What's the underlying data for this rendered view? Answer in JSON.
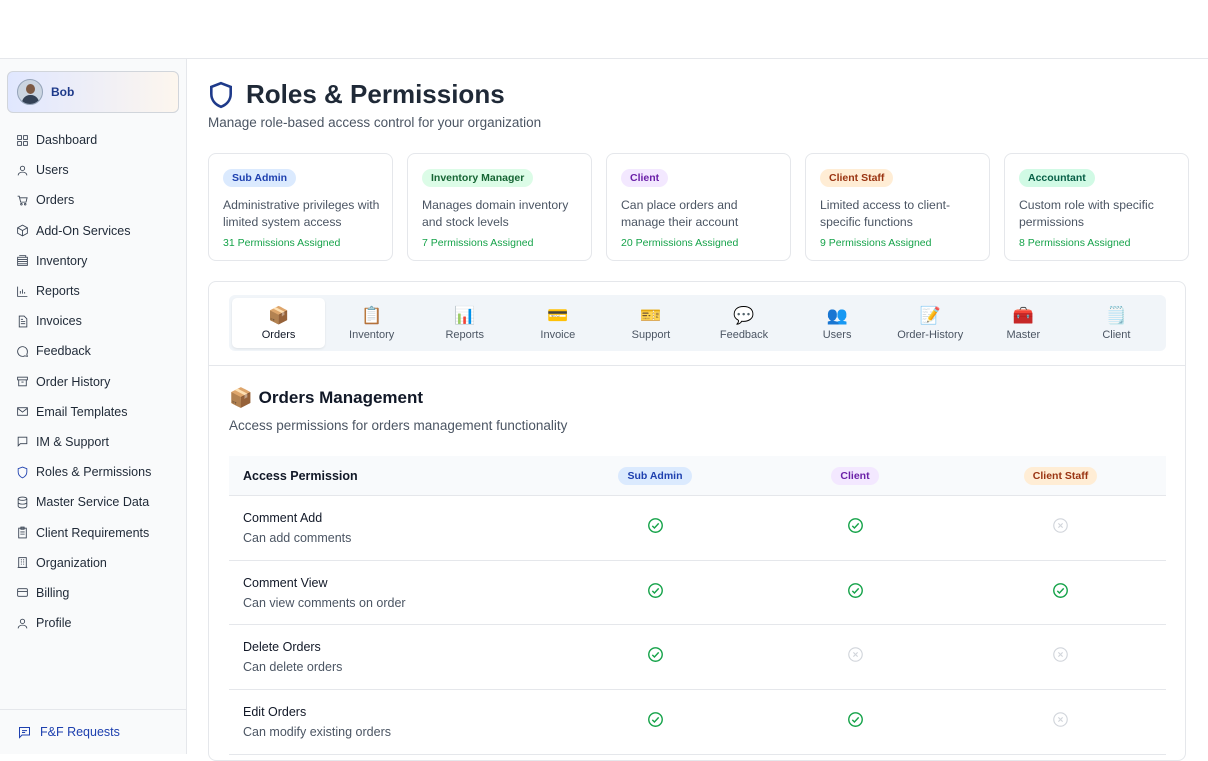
{
  "user": {
    "name": "Bob"
  },
  "sidebar": {
    "items": [
      {
        "label": "Dashboard",
        "icon": "dashboard-icon"
      },
      {
        "label": "Users",
        "icon": "user-icon"
      },
      {
        "label": "Orders",
        "icon": "cart-icon"
      },
      {
        "label": "Add-On Services",
        "icon": "package-icon"
      },
      {
        "label": "Inventory",
        "icon": "inventory-icon"
      },
      {
        "label": "Reports",
        "icon": "chart-icon"
      },
      {
        "label": "Invoices",
        "icon": "document-icon"
      },
      {
        "label": "Feedback",
        "icon": "chat-icon"
      },
      {
        "label": "Order History",
        "icon": "archive-icon"
      },
      {
        "label": "Email Templates",
        "icon": "mail-icon"
      },
      {
        "label": "IM & Support",
        "icon": "message-icon"
      },
      {
        "label": "Roles & Permissions",
        "icon": "shield-icon",
        "active": true
      },
      {
        "label": "Master Service Data",
        "icon": "database-icon"
      },
      {
        "label": "Client Requirements",
        "icon": "clipboard-icon"
      },
      {
        "label": "Organization",
        "icon": "building-icon"
      },
      {
        "label": "Billing",
        "icon": "credit-card-icon"
      },
      {
        "label": "Profile",
        "icon": "user-icon"
      }
    ],
    "footer_label": "F&F Requests"
  },
  "header": {
    "title": "Roles & Permissions",
    "subtitle": "Manage role-based access control for your organization"
  },
  "roles": [
    {
      "name": "Sub Admin",
      "description": "Administrative privileges with limited system access",
      "count": "31 Permissions Assigned",
      "badge_bg": "#dbeafe",
      "badge_fg": "#1e40af"
    },
    {
      "name": "Inventory Manager",
      "description": "Manages domain inventory and stock levels",
      "count": "7 Permissions Assigned",
      "badge_bg": "#dcfce7",
      "badge_fg": "#166534"
    },
    {
      "name": "Client",
      "description": "Can place orders and manage their account",
      "count": "20 Permissions Assigned",
      "badge_bg": "#f3e8ff",
      "badge_fg": "#6b21a8"
    },
    {
      "name": "Client Staff",
      "description": "Limited access to client-specific functions",
      "count": "9 Permissions Assigned",
      "badge_bg": "#ffedd5",
      "badge_fg": "#9a3412"
    },
    {
      "name": "Accountant",
      "description": "Custom role with specific permissions",
      "count": "8 Permissions Assigned",
      "badge_bg": "#d1fae5",
      "badge_fg": "#065f46"
    }
  ],
  "tabs": [
    {
      "label": "Orders",
      "icon": "📦",
      "active": true
    },
    {
      "label": "Inventory",
      "icon": "📋"
    },
    {
      "label": "Reports",
      "icon": "📊"
    },
    {
      "label": "Invoice",
      "icon": "💳"
    },
    {
      "label": "Support",
      "icon": "🎫"
    },
    {
      "label": "Feedback",
      "icon": "💬"
    },
    {
      "label": "Users",
      "icon": "👥"
    },
    {
      "label": "Order-History",
      "icon": "📝"
    },
    {
      "label": "Master",
      "icon": "🧰"
    },
    {
      "label": "Client",
      "icon": "🗒️"
    }
  ],
  "section": {
    "emoji": "📦",
    "title": "Orders Management",
    "subtitle": "Access permissions for orders management functionality"
  },
  "table": {
    "header_label": "Access Permission",
    "columns": [
      {
        "name": "Sub Admin",
        "badge_bg": "#dbeafe",
        "badge_fg": "#1e40af"
      },
      {
        "name": "Client",
        "badge_bg": "#f3e8ff",
        "badge_fg": "#6b21a8"
      },
      {
        "name": "Client Staff",
        "badge_bg": "#ffedd5",
        "badge_fg": "#9a3412"
      }
    ],
    "rows": [
      {
        "name": "Comment Add",
        "description": "Can add comments",
        "access": [
          true,
          true,
          false
        ]
      },
      {
        "name": "Comment View",
        "description": "Can view comments on order",
        "access": [
          true,
          true,
          true
        ]
      },
      {
        "name": "Delete Orders",
        "description": "Can delete orders",
        "access": [
          true,
          false,
          false
        ]
      },
      {
        "name": "Edit Orders",
        "description": "Can modify existing orders",
        "access": [
          true,
          true,
          false
        ]
      }
    ]
  },
  "colors": {
    "granted": "#16a34a",
    "denied": "#d1d5db",
    "accent": "#1e40af"
  }
}
